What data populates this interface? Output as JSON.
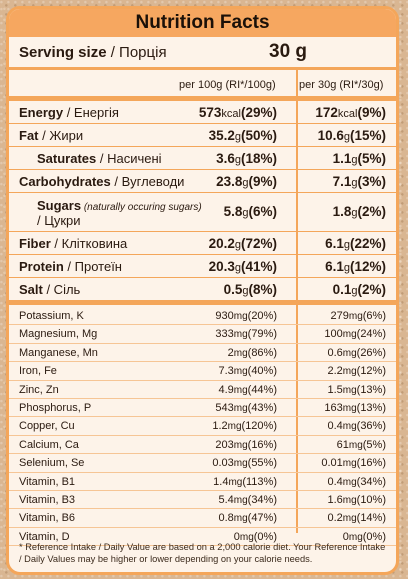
{
  "title": "Nutrition Facts",
  "serving": {
    "label": "Serving size",
    "label_ua": " / Порція",
    "value": "30 g"
  },
  "columns": {
    "per100": "per 100g (RI*/100g)",
    "per30": "per 30g (RI*/30g)"
  },
  "main": [
    {
      "name": "Energy",
      "ua": " / Енергія",
      "v1": "573",
      "u1": "kcal",
      "p1": "(29%)",
      "v2": "172",
      "u2": "kcal",
      "p2": "(9%)"
    },
    {
      "name": "Fat",
      "ua": " / Жири",
      "v1": "35.2",
      "u1": "g",
      "p1": "(50%)",
      "v2": "10.6",
      "u2": "g",
      "p2": "(15%)"
    },
    {
      "name": "Saturates",
      "ua": " / Насичені",
      "v1": "3.6",
      "u1": "g",
      "p1": "(18%)",
      "v2": "1.1",
      "u2": "g",
      "p2": "(5%)"
    },
    {
      "name": "Carbohydrates",
      "ua": " / Вуглеводи",
      "v1": "23.8",
      "u1": "g",
      "p1": "(9%)",
      "v2": "7.1",
      "u2": "g",
      "p2": "(3%)"
    },
    {
      "name": "Sugars",
      "ua_italic": " (naturally occuring sugars)",
      "ua2": "/ Цукри",
      "v1": "5.8",
      "u1": "g",
      "p1": "(6%)",
      "v2": "1.8",
      "u2": "g",
      "p2": "(2%)"
    },
    {
      "name": "Fiber",
      "ua": " / Клітковина",
      "v1": "20.2",
      "u1": "g",
      "p1": "(72%)",
      "v2": "6.1",
      "u2": "g",
      "p2": "(22%)"
    },
    {
      "name": "Protein",
      "ua": " / Протеїн",
      "v1": "20.3",
      "u1": "g",
      "p1": "(41%)",
      "v2": "6.1",
      "u2": "g",
      "p2": "(12%)"
    },
    {
      "name": "Salt",
      "ua": " / Сіль",
      "v1": "0.5",
      "u1": "g",
      "p1": "(8%)",
      "v2": "0.1",
      "u2": "g",
      "p2": "(2%)"
    }
  ],
  "minerals": [
    {
      "name": "Potassium, K",
      "v1": "930",
      "u1": "mg",
      "p1": "(20%)",
      "v2": "279",
      "u2": "mg",
      "p2": "(6%)"
    },
    {
      "name": "Magnesium, Mg",
      "v1": "333",
      "u1": "mg",
      "p1": "(79%)",
      "v2": "100",
      "u2": "mg",
      "p2": "(24%)"
    },
    {
      "name": "Manganese, Mn",
      "v1": "2",
      "u1": "mg",
      "p1": "(86%)",
      "v2": "0.6",
      "u2": "mg",
      "p2": "(26%)"
    },
    {
      "name": "Iron, Fe",
      "v1": "7.3",
      "u1": "mg",
      "p1": "(40%)",
      "v2": "2.2",
      "u2": "mg",
      "p2": "(12%)"
    },
    {
      "name": "Zinc, Zn",
      "v1": "4.9",
      "u1": "mg",
      "p1": "(44%)",
      "v2": "1.5",
      "u2": "mg",
      "p2": "(13%)"
    },
    {
      "name": "Phosphorus, P",
      "v1": "543",
      "u1": "mg",
      "p1": "(43%)",
      "v2": "163",
      "u2": "mg",
      "p2": "(13%)"
    },
    {
      "name": "Copper, Cu",
      "v1": "1.2",
      "u1": "mg",
      "p1": "(120%)",
      "v2": "0.4",
      "u2": "mg",
      "p2": "(36%)"
    },
    {
      "name": "Calcium, Ca",
      "v1": "203",
      "u1": "mg",
      "p1": "(16%)",
      "v2": "61",
      "u2": "mg",
      "p2": "(5%)"
    },
    {
      "name": "Selenium, Se",
      "v1": "0.03",
      "u1": "mg",
      "p1": "(55%)",
      "v2": "0.01",
      "u2": "mg",
      "p2": "(16%)"
    },
    {
      "name": "Vitamin, B1",
      "v1": "1.4",
      "u1": "mg",
      "p1": "(113%)",
      "v2": "0.4",
      "u2": "mg",
      "p2": "(34%)"
    },
    {
      "name": "Vitamin, B3",
      "v1": "5.4",
      "u1": "mg",
      "p1": "(34%)",
      "v2": "1.6",
      "u2": "mg",
      "p2": "(10%)"
    },
    {
      "name": "Vitamin, B6",
      "v1": "0.8",
      "u1": "mg",
      "p1": "(47%)",
      "v2": "0.2",
      "u2": "mg",
      "p2": "(14%)"
    },
    {
      "name": "Vitamin, D",
      "v1": "0",
      "u1": "mg",
      "p1": "(0%)",
      "v2": "0",
      "u2": "mg",
      "p2": "(0%)"
    }
  ],
  "footnote": "* Reference Intake / Daily Value are based on a 2,000 calorie diet. Your Reference Intake / Daily Values may be higher or lower depending on your calorie needs.",
  "colors": {
    "accent": "#f4a65a",
    "header": "#f6a760",
    "panel": "#fdf3e9"
  }
}
